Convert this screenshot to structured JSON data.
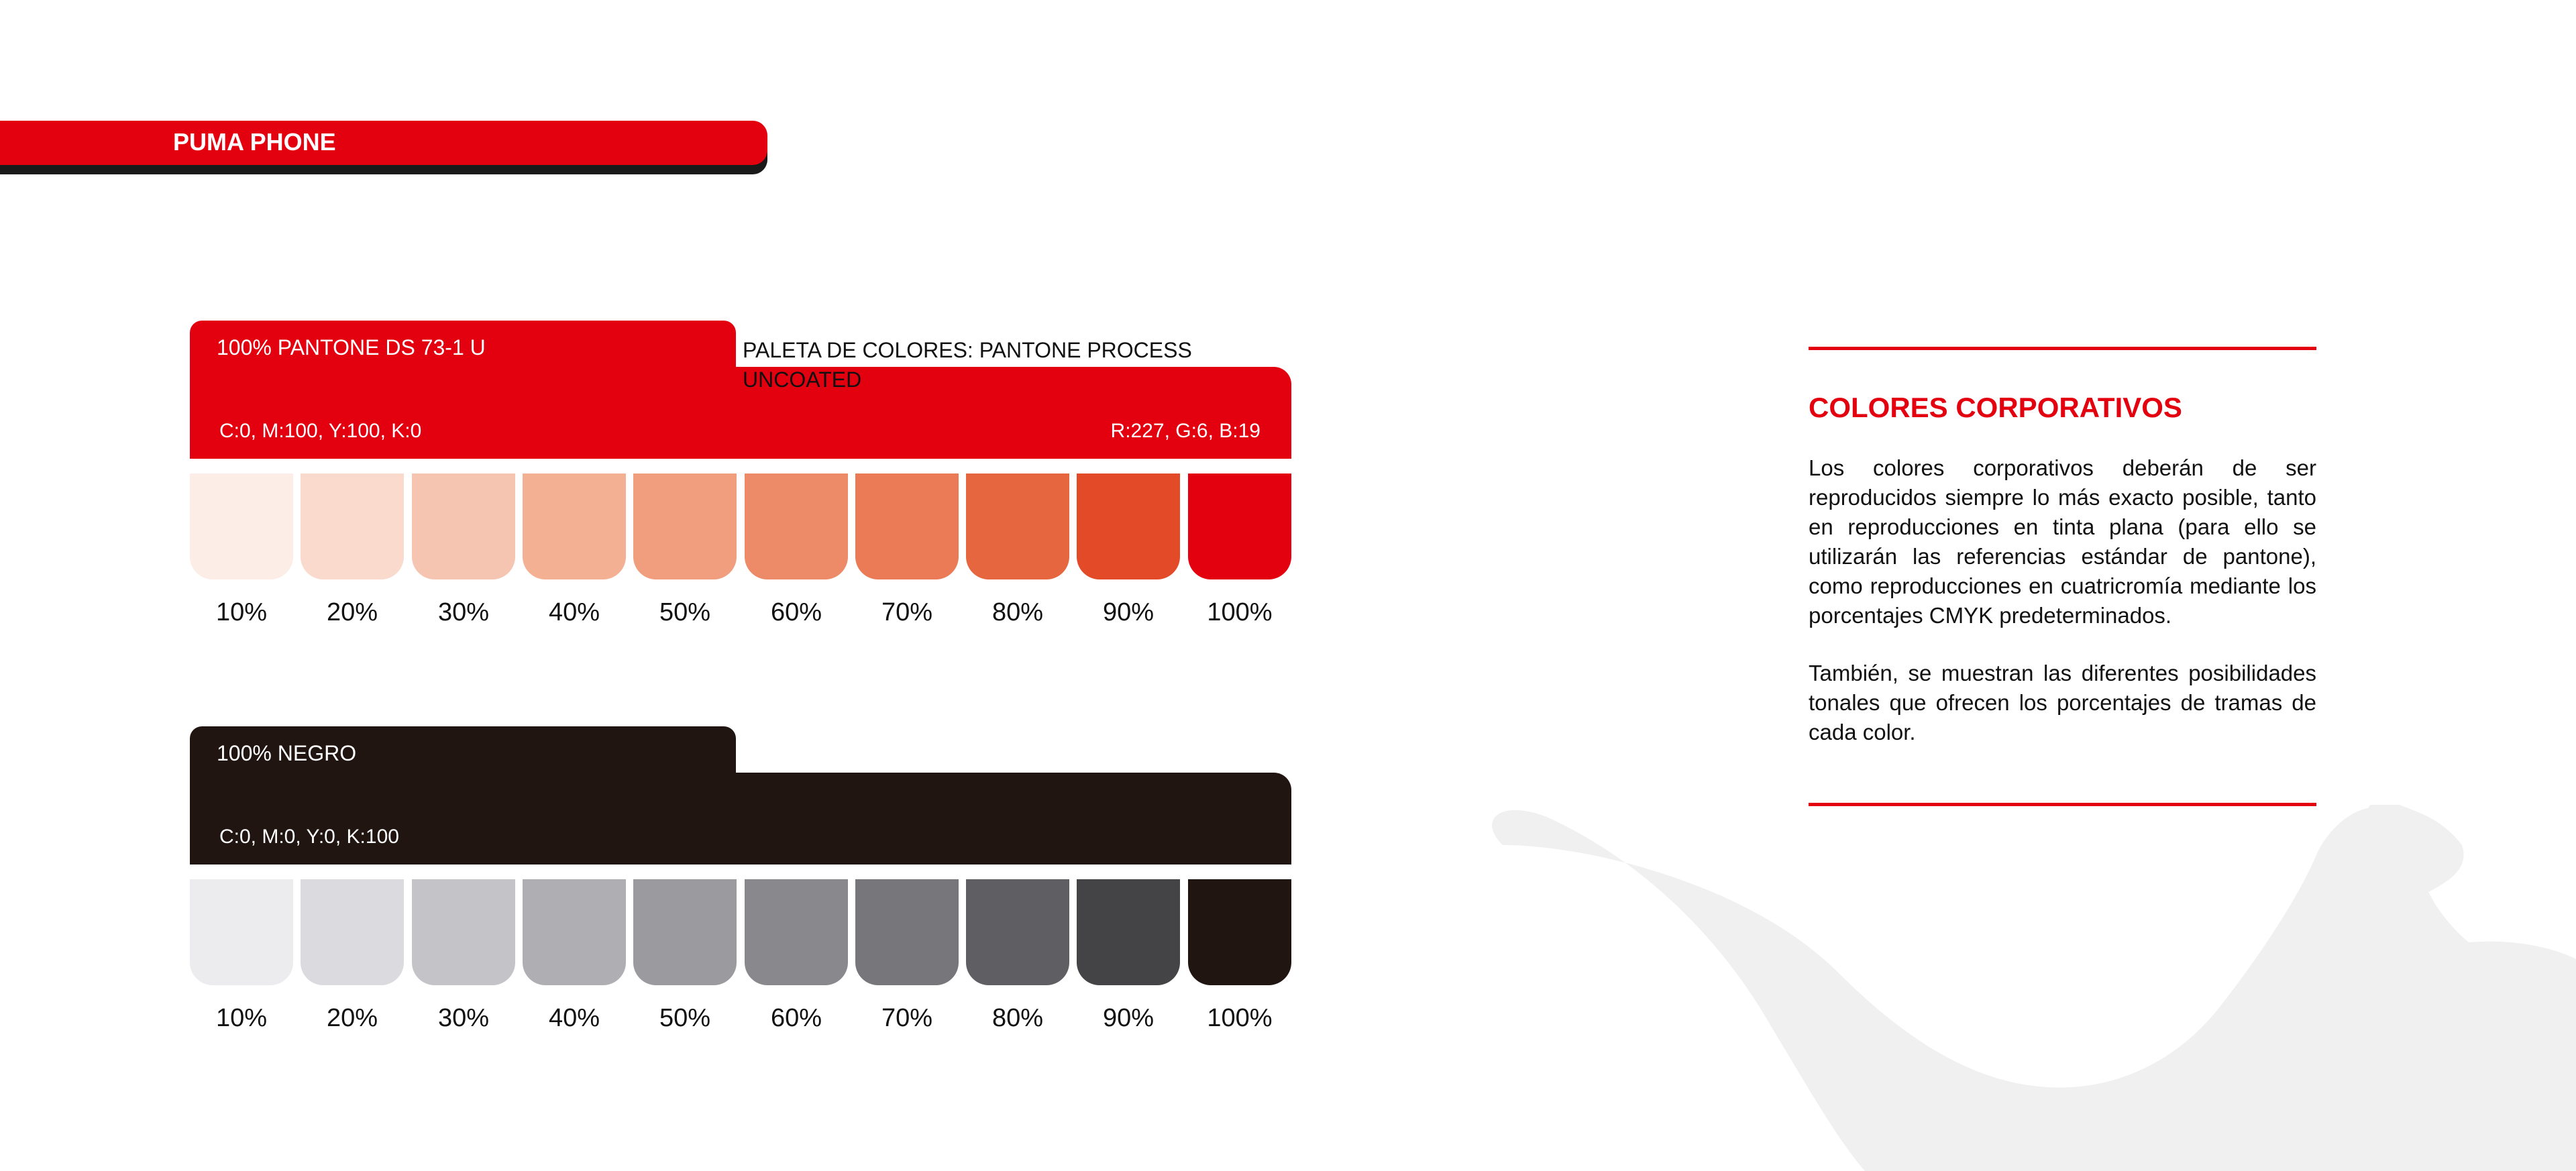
{
  "header": {
    "title": "PUMA PHONE"
  },
  "red_panel": {
    "tab_label": "100% PANTONE DS 73-1 U",
    "palette_title": "PALETA DE COLORES: PANTONE PROCESS UNCOATED",
    "cmyk": "C:0, M:100, Y:100, K:0",
    "rgb": "R:227, G:6, B:19",
    "base_color": "#e3000f",
    "swatches": [
      {
        "label": "10%",
        "color": "#fcede6"
      },
      {
        "label": "20%",
        "color": "#f9dacd"
      },
      {
        "label": "30%",
        "color": "#f6c5b1"
      },
      {
        "label": "40%",
        "color": "#f3b093"
      },
      {
        "label": "50%",
        "color": "#f09e7d"
      },
      {
        "label": "60%",
        "color": "#ed8b68"
      },
      {
        "label": "70%",
        "color": "#ea7b56"
      },
      {
        "label": "80%",
        "color": "#e6663f"
      },
      {
        "label": "90%",
        "color": "#e24a28"
      },
      {
        "label": "100%",
        "color": "#e3000f"
      }
    ]
  },
  "black_panel": {
    "tab_label": "100% NEGRO",
    "cmyk": "C:0, M:0, Y:0, K:100",
    "base_color": "#211512",
    "swatches": [
      {
        "label": "10%",
        "color": "#ececee"
      },
      {
        "label": "20%",
        "color": "#dadadf"
      },
      {
        "label": "30%",
        "color": "#c3c3c8"
      },
      {
        "label": "40%",
        "color": "#afafb3"
      },
      {
        "label": "50%",
        "color": "#9b9b9f"
      },
      {
        "label": "60%",
        "color": "#89898d"
      },
      {
        "label": "70%",
        "color": "#77777b"
      },
      {
        "label": "80%",
        "color": "#5f5f63"
      },
      {
        "label": "90%",
        "color": "#444446"
      },
      {
        "label": "100%",
        "color": "#211512"
      }
    ]
  },
  "sidebar": {
    "title": "COLORES CORPORATIVOS",
    "paragraph_1": "Los colores corporativos deberán de ser reproducidos siempre lo más exacto posible, tanto en reproducciones en tinta plana (para ello se utilizarán las referencias estándar de pantone), como reproducciones en cuatricromía mediante los porcentajes CMYK predeterminados.",
    "paragraph_2": "También, se muestran las diferentes posibilidades tonales que ofrecen los porcentajes de tramas de cada color.",
    "accent_color": "#e3000f"
  },
  "watermark": {
    "icon": "puma-cat-icon",
    "color": "#f0f0f1"
  }
}
